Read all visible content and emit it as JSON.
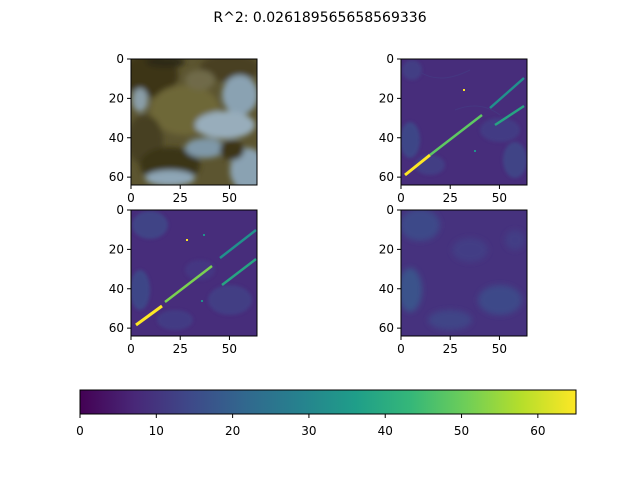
{
  "figure": {
    "title": "R^2: 0.026189565658569336"
  },
  "chart_data": [
    {
      "type": "heatmap",
      "panel": "top-left",
      "content": "rgb satellite image patch",
      "colors": {
        "terrain_dark": "#3f3a1c",
        "terrain_mid": "#6b6234",
        "water": "#8aa5b8"
      },
      "xlim": [
        0,
        64
      ],
      "ylim": [
        64,
        0
      ],
      "xticks": [
        "0",
        "25",
        "50"
      ],
      "yticks": [
        "0",
        "20",
        "40",
        "60"
      ]
    },
    {
      "type": "heatmap",
      "panel": "top-right",
      "content": "label map with diagonal linear features",
      "xlim": [
        0,
        64
      ],
      "ylim": [
        64,
        0
      ],
      "xticks": [
        "0",
        "25",
        "50"
      ],
      "yticks": [
        "0",
        "20",
        "40",
        "60"
      ]
    },
    {
      "type": "heatmap",
      "panel": "bottom-left",
      "content": "label map with diagonal linear features",
      "xlim": [
        0,
        64
      ],
      "ylim": [
        64,
        0
      ],
      "xticks": [
        "0",
        "25",
        "50"
      ],
      "yticks": [
        "0",
        "20",
        "40",
        "60"
      ]
    },
    {
      "type": "heatmap",
      "panel": "bottom-right",
      "content": "prediction map, low values",
      "xlim": [
        0,
        64
      ],
      "ylim": [
        64,
        0
      ],
      "xticks": [
        "0",
        "25",
        "50"
      ],
      "yticks": [
        "0",
        "20",
        "40",
        "60"
      ]
    }
  ],
  "colorbar": {
    "colormap": "viridis",
    "range": [
      0,
      65
    ],
    "ticks": [
      "0",
      "10",
      "20",
      "30",
      "40",
      "50",
      "60"
    ],
    "orientation": "horizontal",
    "colors": [
      "#440154",
      "#482878",
      "#3e4989",
      "#31688e",
      "#26828e",
      "#1f9e89",
      "#35b779",
      "#6ece58",
      "#b5de2b",
      "#fde725"
    ]
  }
}
